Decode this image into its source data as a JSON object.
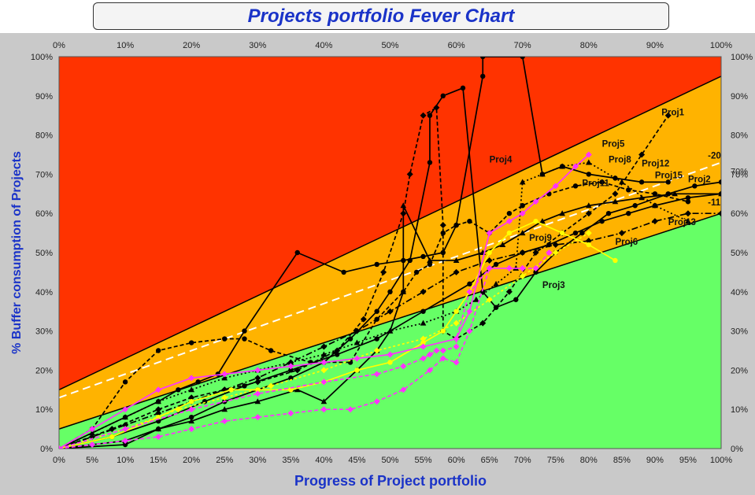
{
  "chart_data": {
    "type": "line",
    "title": "Projects portfolio Fever Chart",
    "xlabel": "Progress of Project portfolio",
    "ylabel": "% Buffer consumption of Projects",
    "xlim": [
      0,
      100
    ],
    "ylim": [
      0,
      100
    ],
    "top_ticks": [
      "0%",
      "10%",
      "20%",
      "30%",
      "40%",
      "50%",
      "60%",
      "70%",
      "80%",
      "90%",
      "100%"
    ],
    "bottom_ticks": [
      "0%",
      "5%",
      "10%",
      "15%",
      "20%",
      "25%",
      "30%",
      "35%",
      "40%",
      "45%",
      "50%",
      "55%",
      "60%",
      "65%",
      "70%",
      "75%",
      "80%",
      "85%",
      "90%",
      "95%",
      "100%"
    ],
    "left_ticks": [
      "0%",
      "10%",
      "20%",
      "30%",
      "40%",
      "50%",
      "60%",
      "70%",
      "80%",
      "90%",
      "100%"
    ],
    "right_ticks": [
      "0%",
      "10%",
      "20%",
      "30%",
      "40%",
      "50%",
      "60%",
      "70%",
      "80%",
      "90%",
      "100%"
    ],
    "zones": {
      "red": "#ff3300",
      "orange": "#ffb300",
      "green": "#66ff66",
      "upper_boundary": [
        [
          0,
          15
        ],
        [
          100,
          95
        ]
      ],
      "lower_boundary": [
        [
          0,
          5
        ],
        [
          100,
          60
        ]
      ]
    },
    "trend_line": {
      "style": "white-dashed",
      "points": [
        [
          0,
          13
        ],
        [
          100,
          73
        ]
      ]
    },
    "annotations": [
      {
        "text": "Proj1",
        "x": 91,
        "y": 85
      },
      {
        "text": "Proj2",
        "x": 95,
        "y": 68
      },
      {
        "text": "Proj3",
        "x": 73,
        "y": 41
      },
      {
        "text": "Proj4",
        "x": 65,
        "y": 73
      },
      {
        "text": "Proj5",
        "x": 82,
        "y": 77
      },
      {
        "text": "Proj6",
        "x": 84,
        "y": 52
      },
      {
        "text": "Proj8",
        "x": 83,
        "y": 73
      },
      {
        "text": "Proj9",
        "x": 71,
        "y": 53
      },
      {
        "text": "Proj11",
        "x": 79,
        "y": 67
      },
      {
        "text": "Proj12",
        "x": 88,
        "y": 72
      },
      {
        "text": "Proj13",
        "x": 92,
        "y": 57
      },
      {
        "text": "Proj15",
        "x": 90,
        "y": 69
      },
      {
        "text": "-20",
        "x": 98,
        "y": 74
      },
      {
        "text": "-11",
        "x": 98,
        "y": 62
      },
      {
        "text": "70%",
        "x": 102,
        "y": 70
      }
    ],
    "series": [
      {
        "color": "#000000",
        "dash": "",
        "marker": "circle",
        "x": [
          0,
          10,
          15,
          18,
          21,
          24,
          28,
          36,
          43,
          48,
          52,
          55,
          58,
          60,
          64,
          64,
          70,
          73,
          76,
          80,
          84,
          88,
          92
        ],
        "y": [
          0,
          8,
          12,
          15,
          17,
          19,
          30,
          50,
          45,
          47,
          48,
          49,
          50,
          57,
          95,
          100,
          100,
          70,
          72,
          70,
          69,
          68,
          68
        ]
      },
      {
        "color": "#000000",
        "dash": "5,3",
        "marker": "circle",
        "x": [
          0,
          5,
          10,
          15,
          20,
          25,
          28,
          32,
          38,
          44,
          48,
          52,
          54,
          56,
          58,
          60,
          62,
          65,
          68,
          70,
          74,
          78,
          82,
          86,
          90,
          95
        ],
        "y": [
          0,
          5,
          17,
          25,
          27,
          28,
          28,
          25,
          22,
          22,
          33,
          40,
          45,
          47,
          55,
          57,
          58,
          55,
          60,
          62,
          65,
          67,
          68,
          66,
          65,
          63
        ]
      },
      {
        "color": "#000000",
        "dash": "",
        "marker": "triangle",
        "x": [
          0,
          5,
          10,
          15,
          20,
          25,
          30,
          36,
          40,
          45,
          48,
          50,
          52,
          52,
          56,
          60,
          64,
          67,
          70,
          73,
          76,
          80,
          84,
          88,
          93,
          100
        ],
        "y": [
          0,
          1,
          2,
          5,
          7,
          10,
          12,
          15,
          12,
          20,
          25,
          30,
          40,
          62,
          48,
          48,
          50,
          52,
          55,
          58,
          60,
          62,
          63,
          64,
          65,
          65
        ]
      },
      {
        "color": "#000000",
        "dash": "5,3",
        "marker": "diamond",
        "x": [
          0,
          8,
          15,
          20,
          25,
          30,
          36,
          42,
          46,
          49,
          52,
          53,
          55,
          57,
          58,
          58,
          60,
          64,
          68,
          72,
          76,
          80,
          84,
          88,
          92
        ],
        "y": [
          0,
          5,
          10,
          13,
          15,
          17,
          20,
          25,
          33,
          45,
          60,
          70,
          85,
          87,
          57,
          30,
          28,
          32,
          40,
          50,
          55,
          60,
          65,
          75,
          85
        ]
      },
      {
        "color": "#000000",
        "dash": "",
        "marker": "circle",
        "x": [
          0,
          10,
          15,
          20,
          25,
          30,
          35,
          40,
          44,
          48,
          50,
          53,
          56,
          56,
          58,
          61,
          64,
          66,
          69,
          72,
          75,
          79,
          83,
          87,
          92,
          96,
          100
        ],
        "y": [
          0,
          1,
          5,
          8,
          12,
          15,
          18,
          22,
          28,
          35,
          40,
          48,
          73,
          85,
          90,
          92,
          40,
          36,
          38,
          45,
          50,
          55,
          60,
          62,
          65,
          67,
          68
        ]
      },
      {
        "color": "#000000",
        "dash": "8,3,2,3",
        "marker": "diamond",
        "x": [
          0,
          5,
          10,
          15,
          20,
          25,
          30,
          35,
          40,
          45,
          50,
          55,
          60,
          65,
          70,
          75,
          80,
          85,
          90,
          95,
          100
        ],
        "y": [
          0,
          3,
          6,
          9,
          12,
          15,
          18,
          22,
          26,
          30,
          35,
          40,
          45,
          48,
          50,
          52,
          53,
          55,
          58,
          60,
          60
        ]
      },
      {
        "color": "#000000",
        "dash": "2,3",
        "marker": "triangle",
        "x": [
          0,
          5,
          10,
          15,
          20,
          25,
          30,
          35,
          40,
          45,
          50,
          55,
          60,
          63,
          66,
          69,
          70,
          73,
          76,
          80,
          85,
          90,
          95
        ],
        "y": [
          0,
          4,
          8,
          12,
          15,
          18,
          20,
          22,
          24,
          27,
          30,
          32,
          35,
          38,
          42,
          46,
          68,
          70,
          72,
          73,
          68,
          62,
          58
        ]
      },
      {
        "color": "#000000",
        "dash": "",
        "marker": "circle",
        "x": [
          0,
          8,
          15,
          22,
          28,
          35,
          42,
          48,
          55,
          62,
          66,
          70,
          74,
          78,
          82,
          86,
          90,
          95,
          100
        ],
        "y": [
          0,
          3,
          7,
          12,
          16,
          20,
          24,
          28,
          35,
          42,
          47,
          50,
          52,
          55,
          58,
          60,
          62,
          64,
          65
        ]
      },
      {
        "color": "#ffff00",
        "dash": "",
        "marker": "circle",
        "x": [
          0,
          8,
          15,
          20,
          26,
          30,
          35,
          40,
          45,
          50,
          55,
          58,
          60,
          62,
          65,
          68,
          72,
          76,
          80,
          84
        ],
        "y": [
          0,
          3,
          8,
          12,
          15,
          15,
          15,
          17,
          20,
          22,
          27,
          30,
          35,
          40,
          50,
          55,
          58,
          55,
          52,
          48
        ]
      },
      {
        "color": "#ffff00",
        "dash": "3,3",
        "marker": "diamond",
        "x": [
          0,
          10,
          18,
          25,
          32,
          40,
          48,
          55,
          60,
          65,
          70,
          75,
          80
        ],
        "y": [
          0,
          5,
          10,
          13,
          16,
          20,
          25,
          28,
          32,
          38,
          44,
          50,
          55
        ]
      },
      {
        "color": "#ff33ff",
        "dash": "",
        "marker": "diamond",
        "x": [
          0,
          5,
          10,
          15,
          20,
          25,
          30,
          35,
          40,
          45,
          50,
          55,
          60,
          62,
          65,
          68,
          70,
          72,
          75,
          78,
          80
        ],
        "y": [
          0,
          5,
          10,
          15,
          18,
          19,
          20,
          21,
          22,
          23,
          24,
          26,
          28,
          35,
          55,
          58,
          60,
          63,
          67,
          72,
          75
        ]
      },
      {
        "color": "#ff33ff",
        "dash": "5,3",
        "marker": "diamond",
        "x": [
          0,
          5,
          10,
          15,
          20,
          25,
          30,
          35,
          40,
          44,
          48,
          52,
          56,
          58,
          60,
          62,
          65,
          68,
          70,
          72,
          74
        ],
        "y": [
          0,
          1,
          2,
          3,
          5,
          7,
          8,
          9,
          10,
          10,
          12,
          15,
          20,
          23,
          22,
          30,
          46,
          46,
          46,
          46,
          50
        ]
      },
      {
        "color": "#ff33ff",
        "dash": "5,3",
        "marker": "diamond",
        "x": [
          0,
          10,
          20,
          30,
          40,
          48,
          52,
          55,
          56,
          57,
          58,
          60,
          60,
          62,
          65,
          68,
          70
        ],
        "y": [
          0,
          5,
          10,
          14,
          17,
          19,
          21,
          23,
          24,
          25,
          25,
          26,
          28,
          40,
          46,
          46,
          46
        ]
      }
    ]
  }
}
